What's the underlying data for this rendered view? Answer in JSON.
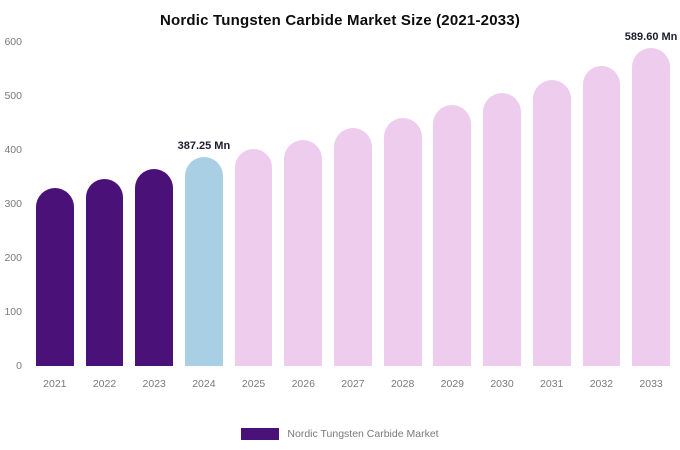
{
  "title": "Nordic Tungsten Carbide Market Size (2021-2033)",
  "legend": {
    "label": "Nordic Tungsten Carbide Market",
    "swatch_color": "#4a1179"
  },
  "chart_data": {
    "type": "bar",
    "title": "Nordic Tungsten Carbide Market Size (2021-2033)",
    "xlabel": "",
    "ylabel": "",
    "categories": [
      "2021",
      "2022",
      "2023",
      "2024",
      "2025",
      "2026",
      "2027",
      "2028",
      "2029",
      "2030",
      "2031",
      "2032",
      "2033"
    ],
    "values": [
      330,
      347,
      364,
      387.25,
      401,
      419,
      440,
      460,
      483,
      505,
      530,
      556,
      589.6
    ],
    "bar_colors": [
      "#4a1179",
      "#4a1179",
      "#4a1179",
      "#a9cfe5",
      "#eeccee",
      "#eeccee",
      "#eeccee",
      "#eeccee",
      "#eeccee",
      "#eeccee",
      "#eeccee",
      "#eeccee",
      "#eeccee"
    ],
    "annotations": [
      {
        "index": 3,
        "text": "387.25 Mn"
      },
      {
        "index": 12,
        "text": "589.60 Mn"
      }
    ],
    "ylim": [
      0,
      600
    ],
    "yticks": [
      0,
      100,
      200,
      300,
      400,
      500,
      600
    ],
    "grid": false,
    "legend_position": "bottom"
  }
}
